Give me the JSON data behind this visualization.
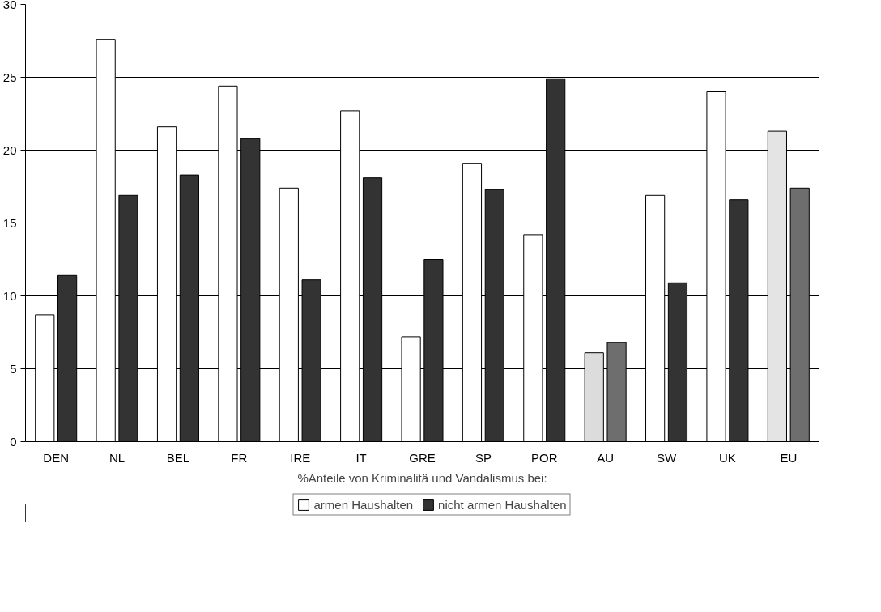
{
  "chart_data": {
    "type": "bar",
    "xlabel": "%Anteile von Kriminalitä und Vandalismus bei:",
    "categories": [
      "DEN",
      "NL",
      "BEL",
      "FR",
      "IRE",
      "IT",
      "GRE",
      "SP",
      "POR",
      "AU",
      "SW",
      "UK",
      "EU"
    ],
    "series": [
      {
        "name": "armen Haushalten",
        "color": "#ffffff",
        "colors": [
          "#ffffff",
          "#ffffff",
          "#ffffff",
          "#ffffff",
          "#ffffff",
          "#ffffff",
          "#ffffff",
          "#ffffff",
          "#ffffff",
          "#dcdcdc",
          "#ffffff",
          "#ffffff",
          "#e4e4e4"
        ],
        "values": [
          8.7,
          27.6,
          21.6,
          24.4,
          17.4,
          22.7,
          7.2,
          19.1,
          14.2,
          6.1,
          16.9,
          24.0,
          21.3
        ]
      },
      {
        "name": "nicht armen Haushalten",
        "color": "#333333",
        "colors": [
          "#333333",
          "#333333",
          "#333333",
          "#333333",
          "#333333",
          "#333333",
          "#333333",
          "#333333",
          "#333333",
          "#6e6e6e",
          "#333333",
          "#333333",
          "#6e6e6e"
        ],
        "values": [
          11.4,
          16.9,
          18.3,
          20.8,
          11.1,
          18.1,
          12.5,
          17.3,
          24.9,
          6.8,
          10.9,
          16.6,
          17.4
        ]
      }
    ],
    "ylim": [
      0,
      30
    ],
    "yticks": [
      0,
      5,
      10,
      15,
      20,
      25,
      30
    ],
    "grid": "y",
    "legend": "bottom"
  }
}
